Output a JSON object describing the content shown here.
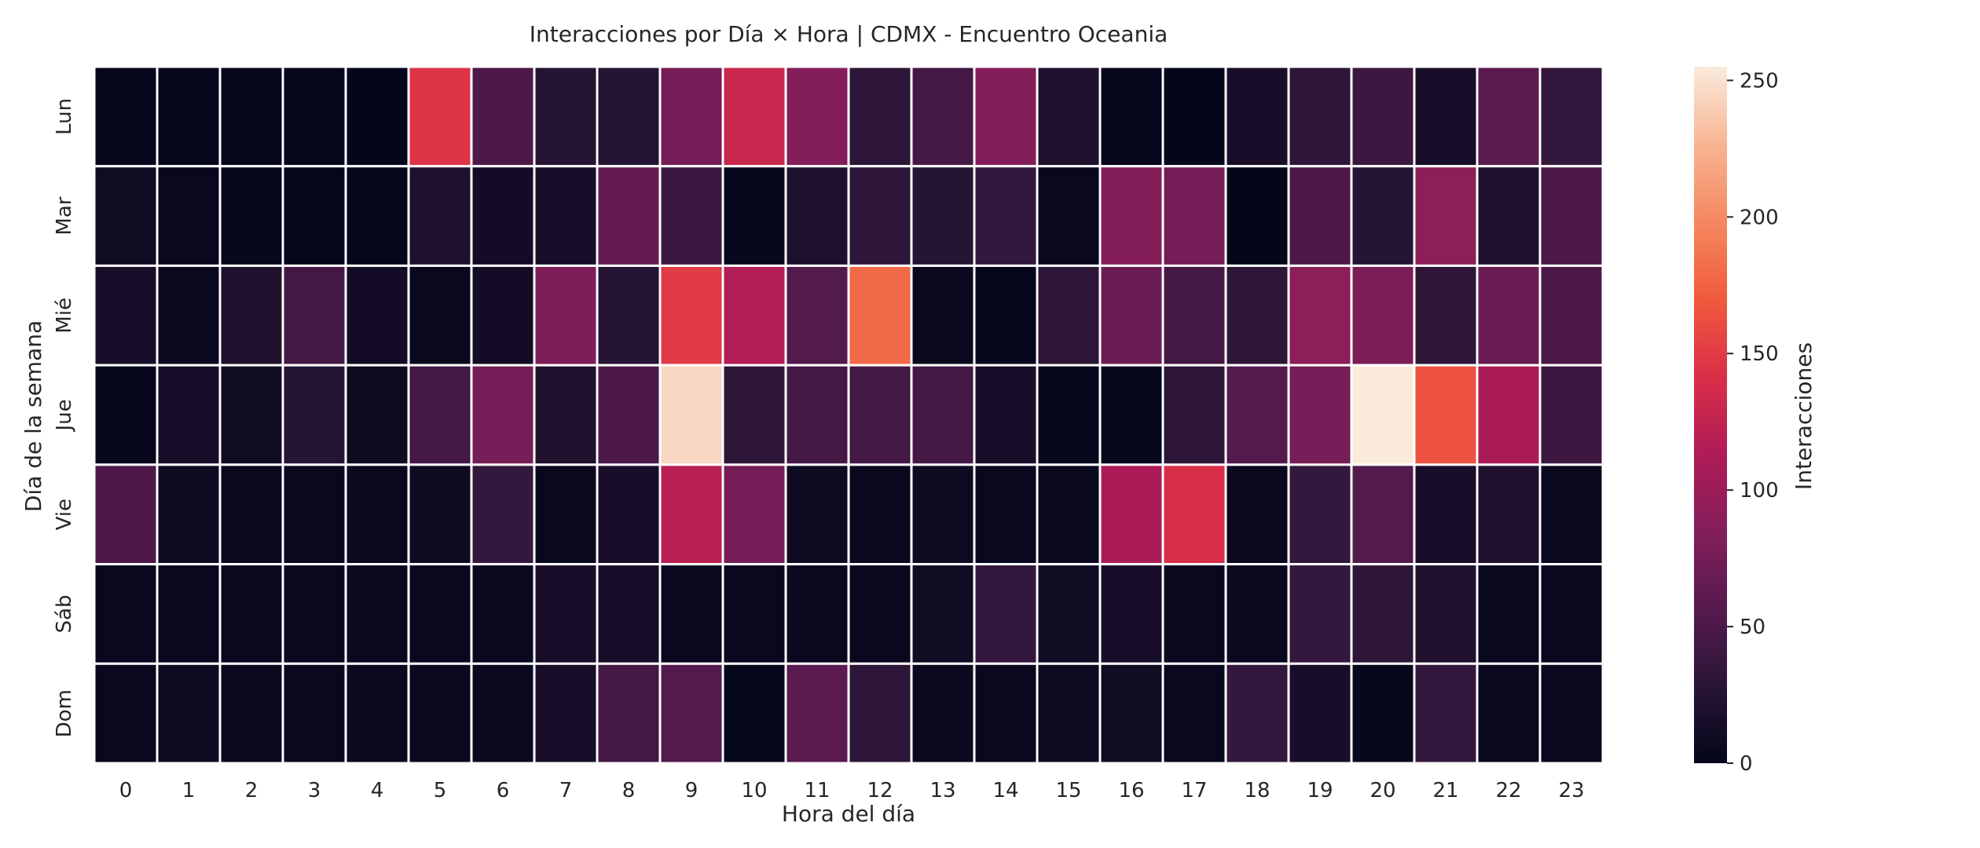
{
  "chart_data": {
    "type": "heatmap",
    "title": "Interacciones por Día × Hora | CDMX - Encuentro Oceania",
    "xlabel": "Hora del día",
    "ylabel": "Día de la semana",
    "x": [
      "0",
      "1",
      "2",
      "3",
      "4",
      "5",
      "6",
      "7",
      "8",
      "9",
      "10",
      "11",
      "12",
      "13",
      "14",
      "15",
      "16",
      "17",
      "18",
      "19",
      "20",
      "21",
      "22",
      "23"
    ],
    "y": [
      "Lun",
      "Mar",
      "Mié",
      "Jue",
      "Vie",
      "Sáb",
      "Dom"
    ],
    "values": [
      [
        2,
        3,
        3,
        2,
        1,
        145,
        50,
        25,
        25,
        75,
        130,
        85,
        30,
        45,
        85,
        20,
        2,
        1,
        15,
        30,
        40,
        15,
        60,
        35
      ],
      [
        10,
        5,
        3,
        2,
        2,
        20,
        12,
        15,
        65,
        40,
        3,
        18,
        30,
        25,
        35,
        5,
        85,
        75,
        1,
        50,
        25,
        90,
        20,
        50
      ],
      [
        15,
        5,
        20,
        45,
        12,
        5,
        12,
        80,
        25,
        150,
        115,
        55,
        180,
        5,
        2,
        30,
        70,
        45,
        30,
        90,
        80,
        30,
        70,
        50
      ],
      [
        3,
        15,
        10,
        25,
        8,
        45,
        75,
        20,
        50,
        245,
        30,
        45,
        45,
        45,
        15,
        3,
        3,
        30,
        55,
        75,
        255,
        165,
        110,
        40
      ],
      [
        50,
        8,
        5,
        5,
        5,
        8,
        35,
        5,
        15,
        120,
        75,
        8,
        5,
        8,
        5,
        5,
        110,
        140,
        5,
        35,
        55,
        15,
        20,
        5
      ],
      [
        5,
        5,
        5,
        5,
        5,
        5,
        5,
        15,
        15,
        5,
        5,
        5,
        5,
        10,
        35,
        10,
        15,
        5,
        5,
        35,
        30,
        20,
        5,
        5
      ],
      [
        5,
        8,
        5,
        5,
        5,
        5,
        5,
        15,
        45,
        55,
        3,
        60,
        30,
        5,
        5,
        8,
        10,
        5,
        35,
        15,
        3,
        35,
        5,
        5
      ]
    ],
    "colorbar": {
      "label": "Interacciones",
      "min": 0,
      "max": 255,
      "ticks": [
        0,
        50,
        100,
        150,
        200,
        250
      ]
    },
    "colormap": [
      "#03051a",
      "#2a1636",
      "#561a4f",
      "#841e5a",
      "#b01c57",
      "#db2f48",
      "#f05a3d",
      "#f58860",
      "#f7b592",
      "#faebdd"
    ]
  }
}
